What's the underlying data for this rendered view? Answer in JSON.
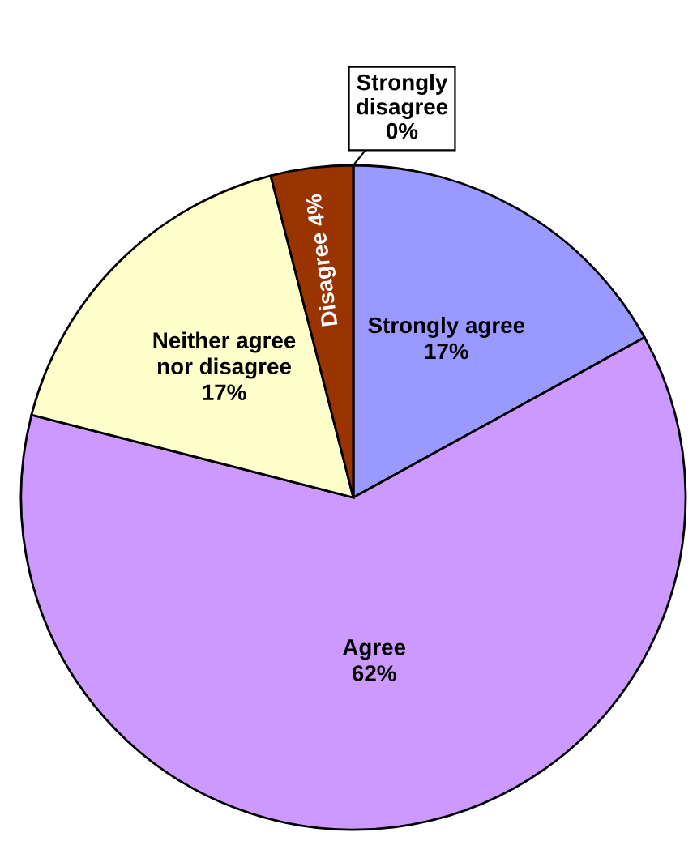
{
  "chart_data": {
    "type": "pie",
    "categories": [
      "Strongly agree",
      "Agree",
      "Neither agree\nnor disagree",
      "Disagree",
      "Strongly\ndisagree"
    ],
    "values": [
      17,
      62,
      17,
      4,
      0
    ],
    "value_labels": [
      "17%",
      "62%",
      "17%",
      "4%",
      "0%"
    ],
    "colors": [
      "#9999ff",
      "#cc99ff",
      "#ffffcc",
      "#993300",
      "#ffffff"
    ],
    "legend": false
  }
}
